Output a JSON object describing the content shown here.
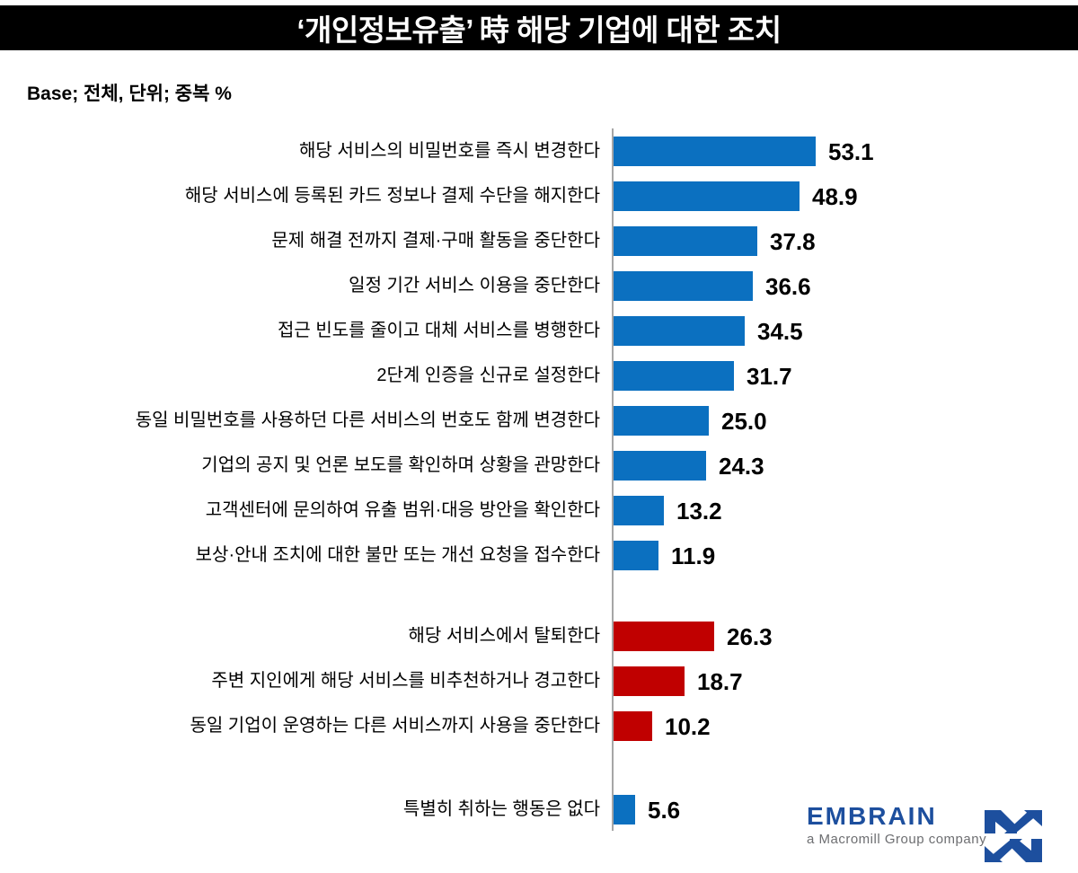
{
  "title": "‘개인정보유출’ 時 해당 기업에 대한 조치",
  "base_note": "Base; 전체, 단위; 중복 %",
  "colors": {
    "blue": "#0b70c0",
    "red": "#c00000",
    "axis": "#a6a6a6",
    "title_bg": "#000000",
    "brand_blue": "#1d4f9e",
    "brand_gray": "#6d6e71"
  },
  "chart_data": {
    "type": "bar",
    "orientation": "horizontal",
    "unit": "중복 %",
    "value_range": [
      0,
      60
    ],
    "grid": false,
    "legend": false,
    "items": [
      {
        "label": "해당 서비스의 비밀번호를 즉시 변경한다",
        "value": 53.1,
        "value_label": "53.1",
        "color_key": "blue",
        "group": 0
      },
      {
        "label": "해당 서비스에 등록된 카드 정보나 결제 수단을 해지한다",
        "value": 48.9,
        "value_label": "48.9",
        "color_key": "blue",
        "group": 0
      },
      {
        "label": "문제 해결 전까지 결제·구매 활동을 중단한다",
        "value": 37.8,
        "value_label": "37.8",
        "color_key": "blue",
        "group": 0
      },
      {
        "label": "일정 기간 서비스 이용을 중단한다",
        "value": 36.6,
        "value_label": "36.6",
        "color_key": "blue",
        "group": 0
      },
      {
        "label": "접근 빈도를 줄이고 대체 서비스를 병행한다",
        "value": 34.5,
        "value_label": "34.5",
        "color_key": "blue",
        "group": 0
      },
      {
        "label": "2단계 인증을 신규로 설정한다",
        "value": 31.7,
        "value_label": "31.7",
        "color_key": "blue",
        "group": 0
      },
      {
        "label": "동일 비밀번호를 사용하던 다른 서비스의 번호도 함께 변경한다",
        "value": 25.0,
        "value_label": "25.0",
        "color_key": "blue",
        "group": 0
      },
      {
        "label": "기업의 공지 및 언론 보도를 확인하며 상황을 관망한다",
        "value": 24.3,
        "value_label": "24.3",
        "color_key": "blue",
        "group": 0
      },
      {
        "label": "고객센터에 문의하여 유출 범위·대응 방안을 확인한다",
        "value": 13.2,
        "value_label": "13.2",
        "color_key": "blue",
        "group": 0
      },
      {
        "label": "보상·안내 조치에 대한 불만 또는 개선 요청을 접수한다",
        "value": 11.9,
        "value_label": "11.9",
        "color_key": "blue",
        "group": 0
      },
      {
        "label": "해당 서비스에서 탈퇴한다",
        "value": 26.3,
        "value_label": "26.3",
        "color_key": "red",
        "group": 1
      },
      {
        "label": "주변 지인에게 해당 서비스를 비추천하거나 경고한다",
        "value": 18.7,
        "value_label": "18.7",
        "color_key": "red",
        "group": 1
      },
      {
        "label": "동일 기업이 운영하는 다른 서비스까지 사용을 중단한다",
        "value": 10.2,
        "value_label": "10.2",
        "color_key": "red",
        "group": 1
      },
      {
        "label": "특별히 취하는 행동은 없다",
        "value": 5.6,
        "value_label": "5.6",
        "color_key": "blue",
        "group": 2
      }
    ]
  },
  "footer": {
    "brand": "EMBRAIN",
    "brand_sub": "a Macromill Group company",
    "logo_icon": "macromill-arrows-icon"
  }
}
